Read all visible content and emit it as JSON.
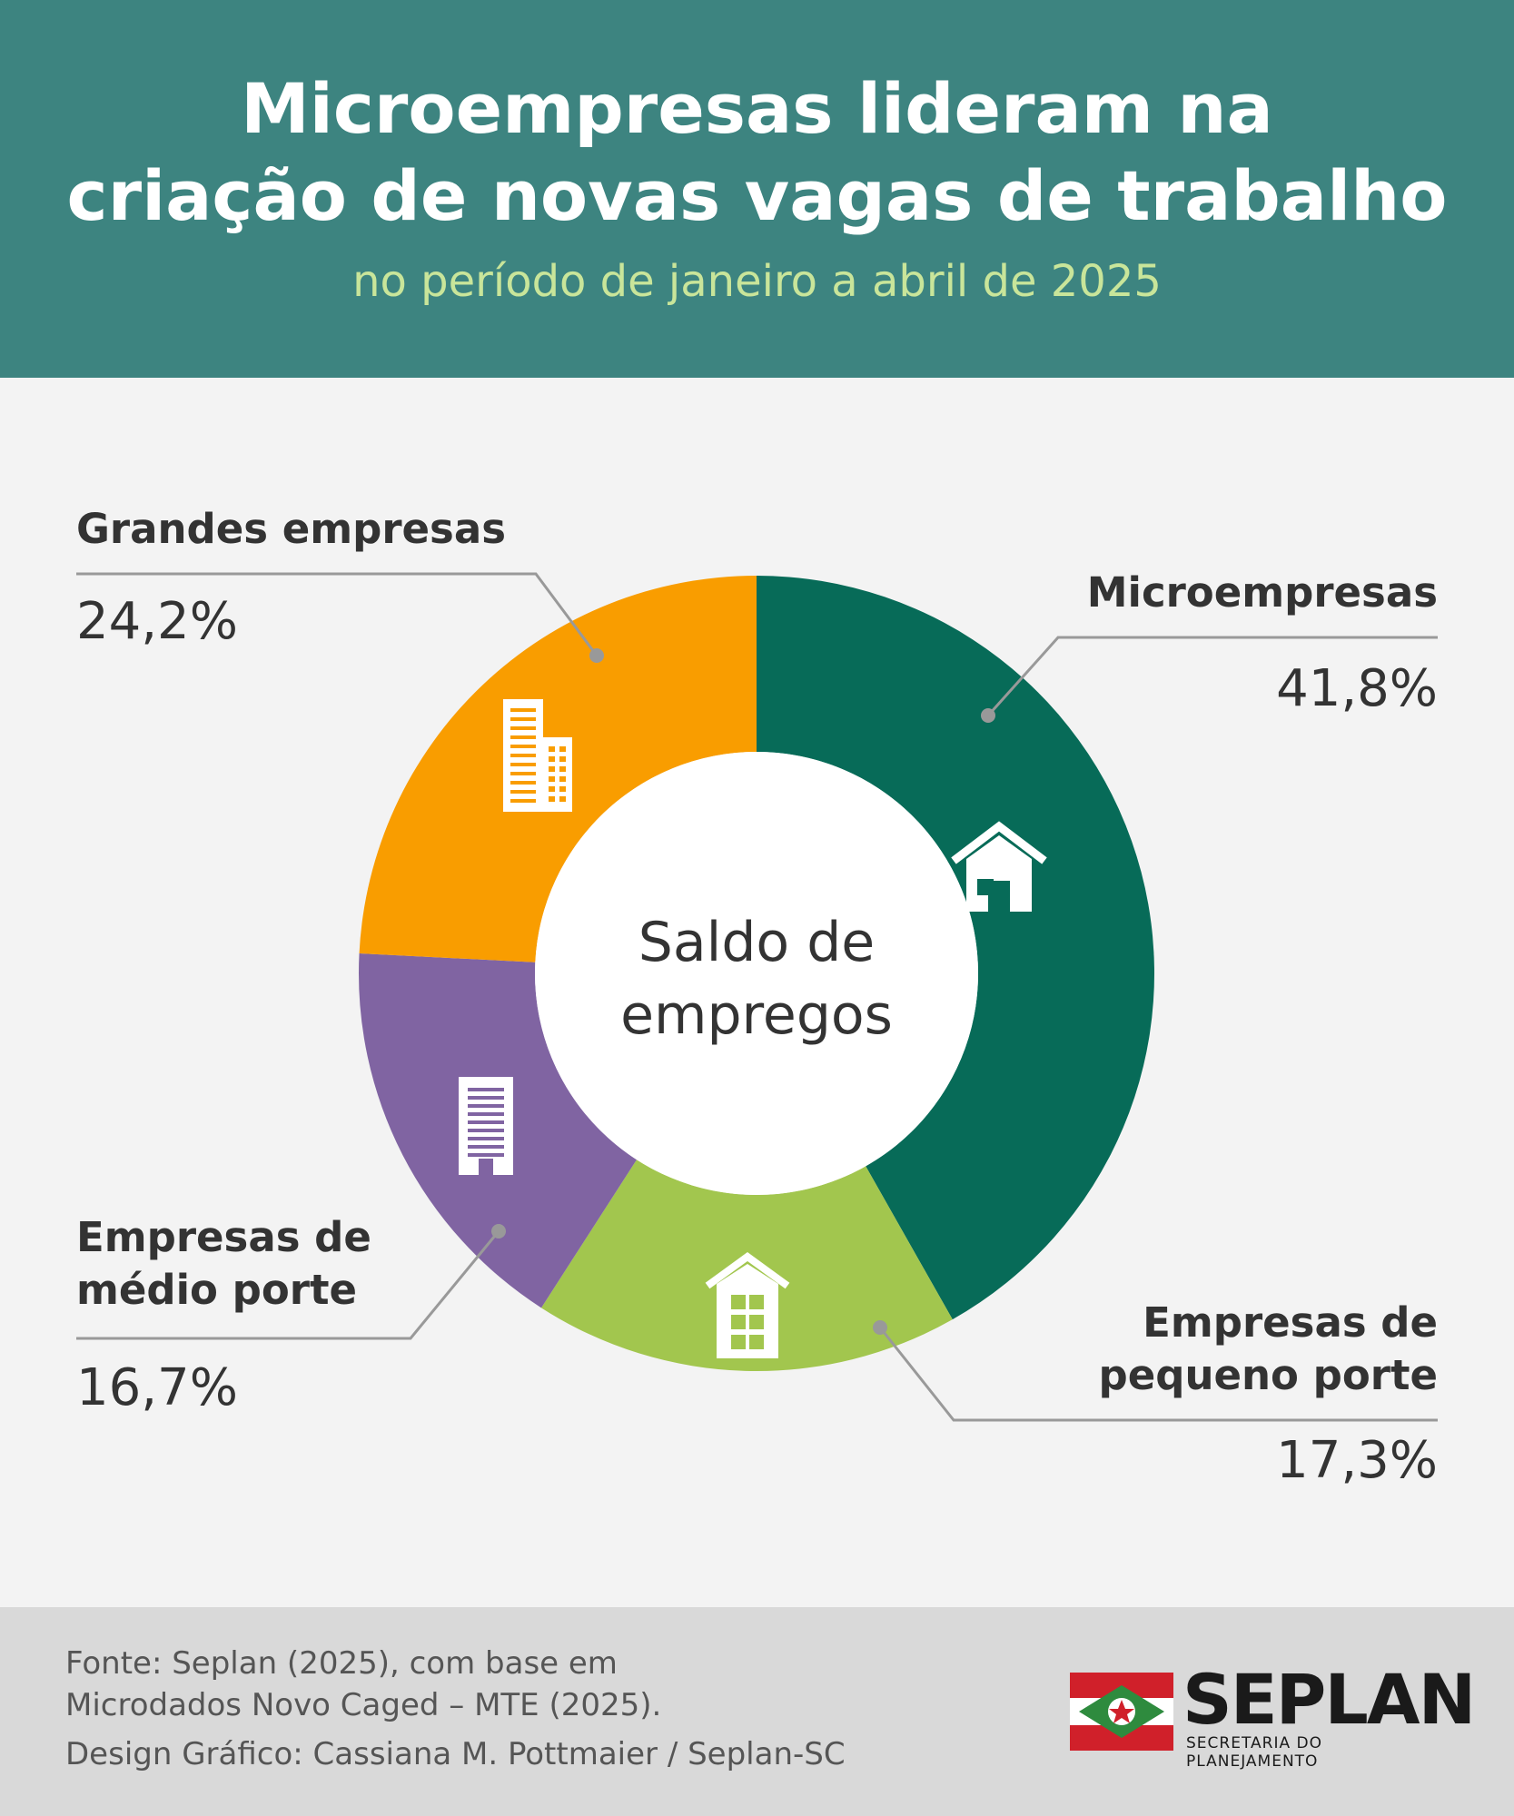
{
  "header": {
    "title_line1": "Microempresas lideram na",
    "title_line2": "criação de novas vagas de trabalho",
    "subtitle": "no período de janeiro a abril de 2025"
  },
  "chart_data": {
    "type": "pie",
    "center_label_line1": "Saldo de",
    "center_label_line2": "empregos",
    "slices": [
      {
        "label": "Microempresas",
        "label_lines": [
          "Microempresas"
        ],
        "value": 41.8,
        "value_label": "41,8%",
        "color": "#076b58",
        "icon": "house-icon"
      },
      {
        "label": "Empresas de pequeno porte",
        "label_lines": [
          "Empresas de",
          "pequeno porte"
        ],
        "value": 17.3,
        "value_label": "17,3%",
        "color": "#a2c64e",
        "icon": "small-building-icon"
      },
      {
        "label": "Empresas de médio porte",
        "label_lines": [
          "Empresas de",
          "médio porte"
        ],
        "value": 16.7,
        "value_label": "16,7%",
        "color": "#8064a2",
        "icon": "office-building-icon"
      },
      {
        "label": "Grandes empresas",
        "label_lines": [
          "Grandes empresas"
        ],
        "value": 24.2,
        "value_label": "24,2%",
        "color": "#f99d00",
        "icon": "skyscraper-icon"
      }
    ]
  },
  "footer": {
    "source_line1": "Fonte: Seplan (2025), com base em",
    "source_line2": "Microdados Novo Caged – MTE (2025).",
    "design_credit": "Design Gráfico: Cassiana M. Pottmaier / Seplan-SC"
  },
  "logo": {
    "name": "SEPLAN",
    "subtitle": "SECRETARIA DO PLANEJAMENTO",
    "flag_colors": [
      "#d0202a",
      "#ffffff",
      "#2e8b3e"
    ]
  }
}
